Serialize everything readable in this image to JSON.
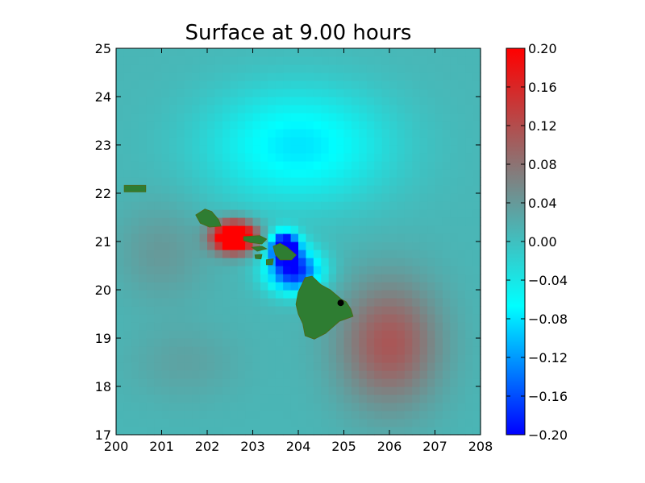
{
  "chart_data": {
    "type": "heatmap",
    "title": "Surface at 9.00 hours",
    "xlabel": "",
    "ylabel": "",
    "xlim": [
      200,
      208
    ],
    "ylim": [
      17,
      25
    ],
    "x_ticks": [
      "200",
      "201",
      "202",
      "203",
      "204",
      "205",
      "206",
      "207",
      "208"
    ],
    "y_ticks": [
      "17",
      "18",
      "19",
      "20",
      "21",
      "22",
      "23",
      "24",
      "25"
    ],
    "colorbar": {
      "range": [
        -0.2,
        0.2
      ],
      "ticks": [
        "0.20",
        "0.16",
        "0.12",
        "0.08",
        "0.04",
        "0.00",
        "−0.04",
        "−0.08",
        "−0.12",
        "−0.16",
        "−0.20"
      ],
      "tick_values": [
        0.2,
        0.16,
        0.12,
        0.08,
        0.04,
        0.0,
        -0.04,
        -0.08,
        -0.12,
        -0.16,
        -0.2
      ],
      "colors": [
        "#0000ff",
        "#00ffff",
        "#808080",
        "#ff0000"
      ]
    },
    "features": {
      "highs": [
        {
          "x": 202.6,
          "y": 21.1,
          "value": 0.2
        },
        {
          "x": 206.0,
          "y": 18.9,
          "value": 0.1
        }
      ],
      "lows": [
        {
          "x": 203.7,
          "y": 20.9,
          "value": -0.2
        },
        {
          "x": 203.9,
          "y": 20.4,
          "value": -0.16
        },
        {
          "x": 204.0,
          "y": 23.0,
          "value": -0.08
        }
      ],
      "land_color": "#2e7d32",
      "islands": [
        {
          "name": "Niihau",
          "points": [
            [
              200.18,
              22.16
            ],
            [
              200.65,
              22.16
            ],
            [
              200.65,
              22.03
            ],
            [
              200.18,
              22.03
            ]
          ]
        },
        {
          "name": "Kauai",
          "points": [
            [
              201.75,
              21.55
            ],
            [
              201.95,
              21.67
            ],
            [
              202.1,
              21.62
            ],
            [
              202.25,
              21.45
            ],
            [
              202.3,
              21.32
            ],
            [
              202.05,
              21.3
            ],
            [
              201.85,
              21.38
            ]
          ]
        },
        {
          "name": "Oahu",
          "points": [
            [
              202.8,
              21.1
            ],
            [
              203.15,
              21.12
            ],
            [
              203.3,
              21.05
            ],
            [
              203.2,
              20.95
            ],
            [
              202.95,
              20.98
            ],
            [
              202.8,
              21.02
            ]
          ]
        },
        {
          "name": "Molokai",
          "points": [
            [
              202.98,
              20.88
            ],
            [
              203.2,
              20.9
            ],
            [
              203.3,
              20.85
            ],
            [
              203.1,
              20.8
            ]
          ]
        },
        {
          "name": "Lanai",
          "points": [
            [
              203.05,
              20.72
            ],
            [
              203.2,
              20.73
            ],
            [
              203.18,
              20.64
            ],
            [
              203.06,
              20.65
            ]
          ]
        },
        {
          "name": "Maui",
          "points": [
            [
              203.45,
              20.9
            ],
            [
              203.6,
              20.96
            ],
            [
              203.75,
              20.88
            ],
            [
              203.95,
              20.72
            ],
            [
              203.85,
              20.62
            ],
            [
              203.6,
              20.62
            ],
            [
              203.5,
              20.72
            ]
          ]
        },
        {
          "name": "Kahoolawe",
          "points": [
            [
              203.3,
              20.62
            ],
            [
              203.45,
              20.64
            ],
            [
              203.43,
              20.52
            ],
            [
              203.3,
              20.52
            ]
          ]
        },
        {
          "name": "Hawaii",
          "points": [
            [
              204.15,
              20.25
            ],
            [
              204.3,
              20.28
            ],
            [
              204.5,
              20.1
            ],
            [
              204.7,
              20.0
            ],
            [
              204.95,
              19.8
            ],
            [
              205.05,
              19.75
            ],
            [
              205.15,
              19.6
            ],
            [
              205.2,
              19.45
            ],
            [
              204.9,
              19.35
            ],
            [
              204.6,
              19.1
            ],
            [
              204.35,
              18.98
            ],
            [
              204.15,
              19.05
            ],
            [
              204.1,
              19.3
            ],
            [
              204.0,
              19.5
            ],
            [
              203.95,
              19.7
            ],
            [
              204.0,
              19.95
            ]
          ]
        }
      ],
      "marker": {
        "x": 204.93,
        "y": 19.73,
        "color": "#000000"
      }
    }
  }
}
